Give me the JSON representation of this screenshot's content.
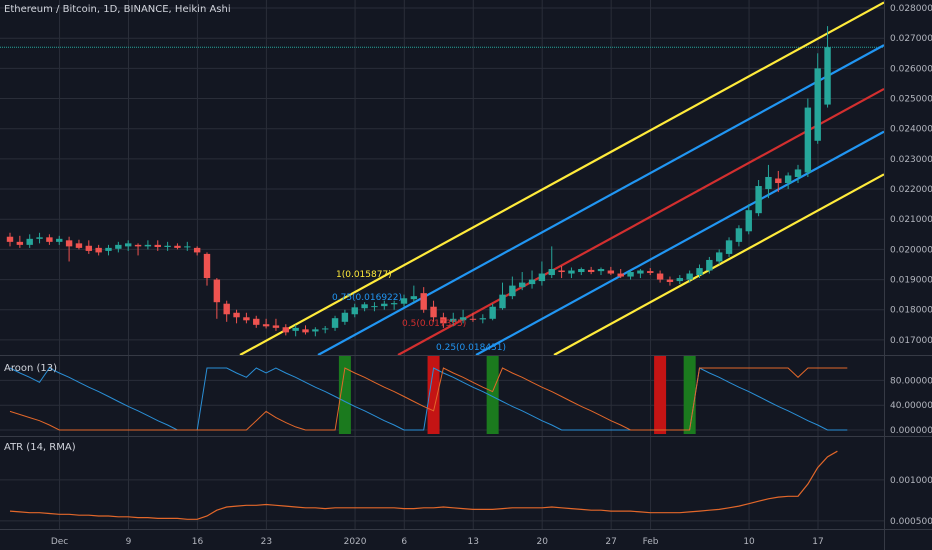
{
  "chart_data": {
    "type": "candlestick",
    "title": "Ethereum / Bitcoin, 1D, BINANCE, Heikin Ashi",
    "colors": {
      "background": "#131722",
      "grid": "#2a2e39",
      "up": "#26a69a",
      "down": "#ef5350",
      "fib_outer": "#ffeb3b",
      "fib_quarter": "#2196f3",
      "fib_half": "#d32f2f",
      "aroon_up": "#e2672a",
      "aroon_down": "#2a8fd6",
      "atr": "#e2672a",
      "aroon_green": "#1b7a1e",
      "aroon_red": "#c41414",
      "hline": "#26a69a"
    },
    "price_axis": {
      "ticks": [
        "0.028000",
        "0.027000",
        "0.026000",
        "0.025000",
        "0.024000",
        "0.023000",
        "0.022000",
        "0.021000",
        "0.020000",
        "0.019000",
        "0.018000",
        "0.017000"
      ],
      "range": [
        0.0165,
        0.0281
      ]
    },
    "x_axis": {
      "tick_labels": [
        "Dec",
        "9",
        "16",
        "23",
        "2020",
        "6",
        "13",
        "20",
        "27",
        "Feb",
        "10",
        "17"
      ]
    },
    "horizontal_line": 0.0267,
    "candles": [
      {
        "o": 0.02042,
        "h": 0.02055,
        "l": 0.0201,
        "c": 0.02025
      },
      {
        "o": 0.02025,
        "h": 0.02045,
        "l": 0.02005,
        "c": 0.02015
      },
      {
        "o": 0.02015,
        "h": 0.0205,
        "l": 0.02005,
        "c": 0.02035
      },
      {
        "o": 0.02035,
        "h": 0.02055,
        "l": 0.0202,
        "c": 0.0204
      },
      {
        "o": 0.0204,
        "h": 0.0205,
        "l": 0.02015,
        "c": 0.02025
      },
      {
        "o": 0.02025,
        "h": 0.02045,
        "l": 0.02015,
        "c": 0.02035
      },
      {
        "o": 0.0203,
        "h": 0.02042,
        "l": 0.0196,
        "c": 0.0201
      },
      {
        "o": 0.0202,
        "h": 0.02032,
        "l": 0.02,
        "c": 0.02005
      },
      {
        "o": 0.02012,
        "h": 0.0203,
        "l": 0.01985,
        "c": 0.01995
      },
      {
        "o": 0.02005,
        "h": 0.02015,
        "l": 0.0198,
        "c": 0.0199
      },
      {
        "o": 0.01995,
        "h": 0.02015,
        "l": 0.0198,
        "c": 0.02005
      },
      {
        "o": 0.02002,
        "h": 0.02025,
        "l": 0.0199,
        "c": 0.02015
      },
      {
        "o": 0.0201,
        "h": 0.0203,
        "l": 0.01995,
        "c": 0.0202
      },
      {
        "o": 0.02015,
        "h": 0.0202,
        "l": 0.0198,
        "c": 0.0201
      },
      {
        "o": 0.0201,
        "h": 0.0203,
        "l": 0.02,
        "c": 0.02015
      },
      {
        "o": 0.02015,
        "h": 0.0203,
        "l": 0.01995,
        "c": 0.02008
      },
      {
        "o": 0.02008,
        "h": 0.02025,
        "l": 0.01995,
        "c": 0.02012
      },
      {
        "o": 0.02012,
        "h": 0.0202,
        "l": 0.02,
        "c": 0.02005
      },
      {
        "o": 0.0201,
        "h": 0.02025,
        "l": 0.01995,
        "c": 0.0201
      },
      {
        "o": 0.02005,
        "h": 0.0201,
        "l": 0.0198,
        "c": 0.0199
      },
      {
        "o": 0.01985,
        "h": 0.0199,
        "l": 0.0188,
        "c": 0.01905
      },
      {
        "o": 0.019,
        "h": 0.01905,
        "l": 0.0177,
        "c": 0.01825
      },
      {
        "o": 0.0182,
        "h": 0.0183,
        "l": 0.0176,
        "c": 0.01785
      },
      {
        "o": 0.0179,
        "h": 0.018,
        "l": 0.01755,
        "c": 0.01775
      },
      {
        "o": 0.01775,
        "h": 0.0179,
        "l": 0.01755,
        "c": 0.01765
      },
      {
        "o": 0.0177,
        "h": 0.0178,
        "l": 0.0174,
        "c": 0.0175
      },
      {
        "o": 0.01752,
        "h": 0.0177,
        "l": 0.01738,
        "c": 0.01745
      },
      {
        "o": 0.01748,
        "h": 0.0177,
        "l": 0.0173,
        "c": 0.0174
      },
      {
        "o": 0.01742,
        "h": 0.01752,
        "l": 0.01715,
        "c": 0.01725
      },
      {
        "o": 0.0173,
        "h": 0.0175,
        "l": 0.01712,
        "c": 0.0174
      },
      {
        "o": 0.01735,
        "h": 0.01748,
        "l": 0.01718,
        "c": 0.01725
      },
      {
        "o": 0.01728,
        "h": 0.01742,
        "l": 0.01712,
        "c": 0.01735
      },
      {
        "o": 0.01735,
        "h": 0.01746,
        "l": 0.01722,
        "c": 0.01738
      },
      {
        "o": 0.0174,
        "h": 0.0178,
        "l": 0.0173,
        "c": 0.01772
      },
      {
        "o": 0.0176,
        "h": 0.018,
        "l": 0.0175,
        "c": 0.0179
      },
      {
        "o": 0.01785,
        "h": 0.0182,
        "l": 0.01775,
        "c": 0.01808
      },
      {
        "o": 0.01805,
        "h": 0.01825,
        "l": 0.01795,
        "c": 0.01818
      },
      {
        "o": 0.0181,
        "h": 0.01825,
        "l": 0.01795,
        "c": 0.01812
      },
      {
        "o": 0.01812,
        "h": 0.0183,
        "l": 0.018,
        "c": 0.0182
      },
      {
        "o": 0.01818,
        "h": 0.0183,
        "l": 0.018,
        "c": 0.01822
      },
      {
        "o": 0.0182,
        "h": 0.0185,
        "l": 0.0181,
        "c": 0.01838
      },
      {
        "o": 0.01835,
        "h": 0.0188,
        "l": 0.01825,
        "c": 0.01845
      },
      {
        "o": 0.01855,
        "h": 0.01875,
        "l": 0.0179,
        "c": 0.018
      },
      {
        "o": 0.0181,
        "h": 0.0183,
        "l": 0.0176,
        "c": 0.01775
      },
      {
        "o": 0.01775,
        "h": 0.0179,
        "l": 0.0174,
        "c": 0.01755
      },
      {
        "o": 0.0176,
        "h": 0.0179,
        "l": 0.01745,
        "c": 0.0177
      },
      {
        "o": 0.01765,
        "h": 0.018,
        "l": 0.01755,
        "c": 0.01775
      },
      {
        "o": 0.0177,
        "h": 0.0179,
        "l": 0.0176,
        "c": 0.01768
      },
      {
        "o": 0.01768,
        "h": 0.01785,
        "l": 0.01755,
        "c": 0.01772
      },
      {
        "o": 0.0177,
        "h": 0.0182,
        "l": 0.01765,
        "c": 0.0181
      },
      {
        "o": 0.01805,
        "h": 0.0189,
        "l": 0.018,
        "c": 0.0185
      },
      {
        "o": 0.01845,
        "h": 0.0191,
        "l": 0.01835,
        "c": 0.0188
      },
      {
        "o": 0.01875,
        "h": 0.01925,
        "l": 0.01865,
        "c": 0.0189
      },
      {
        "o": 0.01885,
        "h": 0.0193,
        "l": 0.0187,
        "c": 0.019
      },
      {
        "o": 0.01895,
        "h": 0.0196,
        "l": 0.0188,
        "c": 0.0192
      },
      {
        "o": 0.01915,
        "h": 0.0201,
        "l": 0.01905,
        "c": 0.01935
      },
      {
        "o": 0.0193,
        "h": 0.01945,
        "l": 0.01905,
        "c": 0.01925
      },
      {
        "o": 0.0192,
        "h": 0.0194,
        "l": 0.01905,
        "c": 0.0193
      },
      {
        "o": 0.01925,
        "h": 0.0194,
        "l": 0.01915,
        "c": 0.01935
      },
      {
        "o": 0.01932,
        "h": 0.01942,
        "l": 0.01918,
        "c": 0.01925
      },
      {
        "o": 0.01928,
        "h": 0.0194,
        "l": 0.01915,
        "c": 0.01935
      },
      {
        "o": 0.0193,
        "h": 0.01942,
        "l": 0.01915,
        "c": 0.0192
      },
      {
        "o": 0.0192,
        "h": 0.01935,
        "l": 0.01905,
        "c": 0.0191
      },
      {
        "o": 0.0191,
        "h": 0.0193,
        "l": 0.019,
        "c": 0.01925
      },
      {
        "o": 0.0192,
        "h": 0.01935,
        "l": 0.01905,
        "c": 0.0193
      },
      {
        "o": 0.01928,
        "h": 0.01938,
        "l": 0.01915,
        "c": 0.01922
      },
      {
        "o": 0.0192,
        "h": 0.0193,
        "l": 0.0189,
        "c": 0.019
      },
      {
        "o": 0.019,
        "h": 0.0191,
        "l": 0.0188,
        "c": 0.01892
      },
      {
        "o": 0.01895,
        "h": 0.01915,
        "l": 0.01885,
        "c": 0.01905
      },
      {
        "o": 0.019,
        "h": 0.0193,
        "l": 0.0189,
        "c": 0.0192
      },
      {
        "o": 0.01915,
        "h": 0.0195,
        "l": 0.01905,
        "c": 0.01938
      },
      {
        "o": 0.0193,
        "h": 0.01975,
        "l": 0.0192,
        "c": 0.01965
      },
      {
        "o": 0.0196,
        "h": 0.02,
        "l": 0.0195,
        "c": 0.0199
      },
      {
        "o": 0.01985,
        "h": 0.0204,
        "l": 0.01975,
        "c": 0.0203
      },
      {
        "o": 0.02025,
        "h": 0.0208,
        "l": 0.0201,
        "c": 0.0207
      },
      {
        "o": 0.0206,
        "h": 0.0215,
        "l": 0.0205,
        "c": 0.0213
      },
      {
        "o": 0.0212,
        "h": 0.0223,
        "l": 0.0211,
        "c": 0.0221
      },
      {
        "o": 0.022,
        "h": 0.0228,
        "l": 0.0217,
        "c": 0.0224
      },
      {
        "o": 0.02235,
        "h": 0.0226,
        "l": 0.0219,
        "c": 0.0222
      },
      {
        "o": 0.0222,
        "h": 0.02255,
        "l": 0.022,
        "c": 0.02245
      },
      {
        "o": 0.0224,
        "h": 0.0228,
        "l": 0.0222,
        "c": 0.02265
      },
      {
        "o": 0.02255,
        "h": 0.025,
        "l": 0.0224,
        "c": 0.0247
      },
      {
        "o": 0.0236,
        "h": 0.0265,
        "l": 0.0235,
        "c": 0.026
      },
      {
        "o": 0.0248,
        "h": 0.0274,
        "l": 0.0247,
        "c": 0.0267
      }
    ],
    "fib_channel": {
      "labels": [
        {
          "text": "1(0.015877)",
          "level": "outer"
        },
        {
          "text": "0.75(0.016922)",
          "level": "quarter"
        },
        {
          "text": "0.5(0.017395)",
          "level": "half"
        },
        {
          "text": "0.25(0.018431)",
          "level": "quarter"
        }
      ]
    },
    "aroon": {
      "title": "Aroon (13)",
      "ticks": [
        "80.000000",
        "40.000000",
        "0.000000"
      ],
      "range": [
        0,
        100
      ],
      "up": [
        30,
        25,
        20,
        15,
        8,
        0,
        0,
        0,
        0,
        0,
        0,
        0,
        0,
        0,
        0,
        0,
        0,
        0,
        0,
        0,
        0,
        0,
        0,
        0,
        0,
        15,
        30,
        20,
        12,
        5,
        0,
        0,
        0,
        0,
        100,
        92,
        85,
        77,
        69,
        62,
        54,
        46,
        38,
        31,
        100,
        92,
        85,
        77,
        69,
        62,
        100,
        92,
        85,
        77,
        69,
        62,
        54,
        46,
        38,
        31,
        23,
        15,
        8,
        0,
        0,
        0,
        0,
        0,
        0,
        0,
        100,
        100,
        100,
        100,
        100,
        100,
        100,
        100,
        100,
        100,
        85,
        100,
        100,
        100,
        100,
        100
      ],
      "down": [
        100,
        92,
        85,
        77,
        100,
        92,
        85,
        77,
        69,
        62,
        54,
        46,
        38,
        31,
        23,
        15,
        8,
        0,
        0,
        0,
        100,
        100,
        100,
        92,
        85,
        100,
        92,
        100,
        92,
        85,
        77,
        69,
        62,
        54,
        46,
        38,
        31,
        23,
        15,
        8,
        0,
        0,
        0,
        100,
        92,
        85,
        77,
        69,
        62,
        54,
        46,
        38,
        31,
        23,
        15,
        8,
        0,
        0,
        0,
        0,
        0,
        0,
        0,
        0,
        0,
        0,
        0,
        0,
        0,
        0,
        100,
        92,
        85,
        77,
        69,
        62,
        54,
        46,
        38,
        31,
        23,
        15,
        8,
        0,
        0,
        0
      ],
      "green_bands": [
        34,
        49,
        69
      ],
      "red_bands": [
        43,
        66
      ]
    },
    "atr": {
      "title": "ATR (14, RMA)",
      "ticks": [
        "0.001000",
        "0.000500"
      ],
      "range": [
        0.00045,
        0.00145
      ],
      "values": [
        0.00062,
        0.00061,
        0.0006,
        0.0006,
        0.00059,
        0.00058,
        0.00058,
        0.00057,
        0.00057,
        0.00056,
        0.00056,
        0.00055,
        0.00055,
        0.00054,
        0.00054,
        0.00053,
        0.00053,
        0.00053,
        0.00052,
        0.00052,
        0.00056,
        0.00063,
        0.00067,
        0.00068,
        0.00069,
        0.00069,
        0.0007,
        0.00069,
        0.00068,
        0.00067,
        0.00066,
        0.00066,
        0.00065,
        0.00066,
        0.00066,
        0.00066,
        0.00066,
        0.00066,
        0.00066,
        0.00066,
        0.00065,
        0.00065,
        0.00066,
        0.00066,
        0.00067,
        0.00066,
        0.00065,
        0.00064,
        0.00064,
        0.00064,
        0.00065,
        0.00066,
        0.00066,
        0.00066,
        0.00066,
        0.00067,
        0.00066,
        0.00065,
        0.00064,
        0.00063,
        0.00063,
        0.00062,
        0.00062,
        0.00062,
        0.00061,
        0.0006,
        0.0006,
        0.0006,
        0.0006,
        0.00061,
        0.00062,
        0.00063,
        0.00064,
        0.00066,
        0.00068,
        0.00071,
        0.00074,
        0.00077,
        0.00079,
        0.0008,
        0.0008,
        0.00095,
        0.00115,
        0.00128,
        0.00135
      ]
    }
  }
}
